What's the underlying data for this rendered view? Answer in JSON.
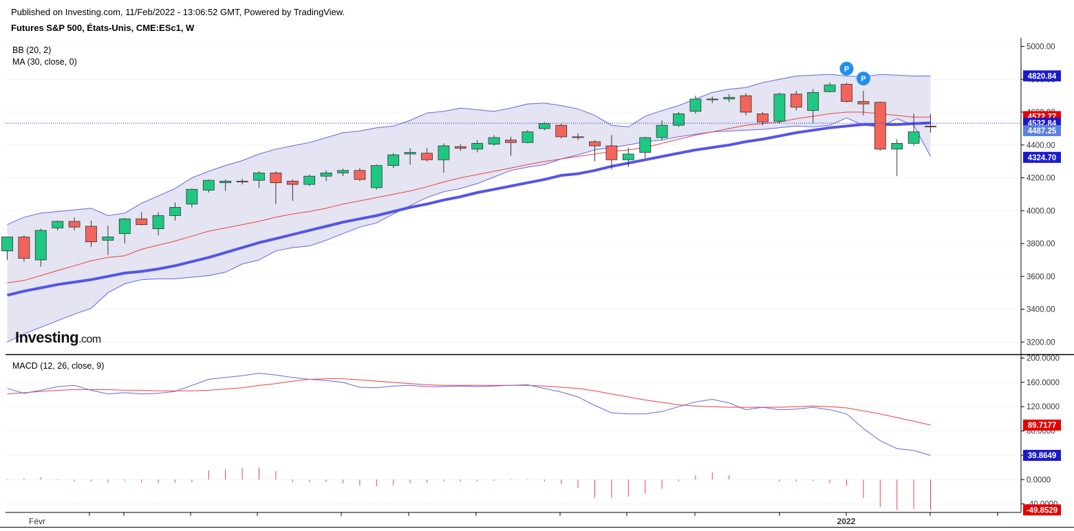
{
  "header": {
    "published": "Published on Investing.com, 11/Feb/2022 - 13:06:52 GMT, Powered by TradingView.",
    "symbol": "Futures S&P 500, États-Unis, CME:ESc1, W"
  },
  "indicators": {
    "bb": "BB (20, 2)",
    "ma": "MA (30, close, 0)",
    "macd": "MACD (12, 26, close, 9)"
  },
  "logo": {
    "main": "Investing",
    "suffix": ".com"
  },
  "colors": {
    "up": "#1ec882",
    "down": "#f4645a",
    "bb_fill": "#e4e4f2",
    "bb_line": "#6464e6",
    "ma30": "#5555e6",
    "bb_mid": "#ef3f3f",
    "macd_line": "#6464e6",
    "signal_line": "#ef3f3f",
    "badge_blue": "#1a1acd",
    "badge_red": "#e60000",
    "badge_light": "#5b7fde",
    "marker": "#1e90f0"
  },
  "chart_data": [
    {
      "type": "candlestick",
      "title": "Futures S&P 500, États-Unis, CME:ESc1, W",
      "x_labels": [
        "Févr",
        "2022"
      ],
      "y_ticks": [
        3200,
        3400,
        3600,
        3800,
        4000,
        4200,
        4400,
        4600,
        4800,
        5000
      ],
      "y_tick_labels": [
        "3200.00",
        "3400.00",
        "3600.00",
        "3800.00",
        "4000.00",
        "4200.00",
        "4400.00",
        "4600.00",
        "4800.00",
        "5000.00"
      ],
      "ylim": [
        3130,
        5040
      ],
      "candles": [
        {
          "o": 3755,
          "h": 3840,
          "l": 3700,
          "c": 3840
        },
        {
          "o": 3840,
          "h": 3850,
          "l": 3690,
          "c": 3710
        },
        {
          "o": 3700,
          "h": 3890,
          "l": 3660,
          "c": 3880
        },
        {
          "o": 3895,
          "h": 3940,
          "l": 3880,
          "c": 3935
        },
        {
          "o": 3935,
          "h": 3960,
          "l": 3880,
          "c": 3900
        },
        {
          "o": 3905,
          "h": 3940,
          "l": 3780,
          "c": 3810
        },
        {
          "o": 3820,
          "h": 3910,
          "l": 3730,
          "c": 3840
        },
        {
          "o": 3860,
          "h": 3955,
          "l": 3800,
          "c": 3950
        },
        {
          "o": 3950,
          "h": 3990,
          "l": 3910,
          "c": 3915
        },
        {
          "o": 3890,
          "h": 3990,
          "l": 3850,
          "c": 3970
        },
        {
          "o": 3970,
          "h": 4050,
          "l": 3940,
          "c": 4020
        },
        {
          "o": 4040,
          "h": 4135,
          "l": 4020,
          "c": 4130
        },
        {
          "o": 4125,
          "h": 4190,
          "l": 4110,
          "c": 4185
        },
        {
          "o": 4170,
          "h": 4190,
          "l": 4120,
          "c": 4180
        },
        {
          "o": 4180,
          "h": 4195,
          "l": 4160,
          "c": 4175
        },
        {
          "o": 4185,
          "h": 4240,
          "l": 4140,
          "c": 4230
        },
        {
          "o": 4230,
          "h": 4240,
          "l": 4040,
          "c": 4170
        },
        {
          "o": 4180,
          "h": 4190,
          "l": 4060,
          "c": 4160
        },
        {
          "o": 4160,
          "h": 4220,
          "l": 4150,
          "c": 4210
        },
        {
          "o": 4210,
          "h": 4245,
          "l": 4180,
          "c": 4230
        },
        {
          "o": 4230,
          "h": 4255,
          "l": 4210,
          "c": 4245
        },
        {
          "o": 4245,
          "h": 4260,
          "l": 4180,
          "c": 4190
        },
        {
          "o": 4140,
          "h": 4280,
          "l": 4130,
          "c": 4275
        },
        {
          "o": 4275,
          "h": 4350,
          "l": 4260,
          "c": 4340
        },
        {
          "o": 4345,
          "h": 4380,
          "l": 4280,
          "c": 4355
        },
        {
          "o": 4350,
          "h": 4380,
          "l": 4300,
          "c": 4310
        },
        {
          "o": 4310,
          "h": 4410,
          "l": 4230,
          "c": 4395
        },
        {
          "o": 4390,
          "h": 4405,
          "l": 4365,
          "c": 4380
        },
        {
          "o": 4375,
          "h": 4430,
          "l": 4355,
          "c": 4410
        },
        {
          "o": 4405,
          "h": 4460,
          "l": 4395,
          "c": 4445
        },
        {
          "o": 4430,
          "h": 4450,
          "l": 4335,
          "c": 4415
        },
        {
          "o": 4415,
          "h": 4490,
          "l": 4410,
          "c": 4480
        },
        {
          "o": 4500,
          "h": 4540,
          "l": 4490,
          "c": 4530
        },
        {
          "o": 4520,
          "h": 4530,
          "l": 4440,
          "c": 4450
        },
        {
          "o": 4450,
          "h": 4470,
          "l": 4430,
          "c": 4445
        },
        {
          "o": 4420,
          "h": 4430,
          "l": 4300,
          "c": 4395
        },
        {
          "o": 4395,
          "h": 4460,
          "l": 4250,
          "c": 4310
        },
        {
          "o": 4310,
          "h": 4385,
          "l": 4265,
          "c": 4345
        },
        {
          "o": 4355,
          "h": 4450,
          "l": 4320,
          "c": 4445
        },
        {
          "o": 4445,
          "h": 4550,
          "l": 4430,
          "c": 4520
        },
        {
          "o": 4520,
          "h": 4600,
          "l": 4510,
          "c": 4590
        },
        {
          "o": 4605,
          "h": 4700,
          "l": 4590,
          "c": 4680
        },
        {
          "o": 4675,
          "h": 4695,
          "l": 4655,
          "c": 4680
        },
        {
          "o": 4680,
          "h": 4710,
          "l": 4660,
          "c": 4690
        },
        {
          "o": 4700,
          "h": 4715,
          "l": 4580,
          "c": 4600
        },
        {
          "o": 4590,
          "h": 4600,
          "l": 4520,
          "c": 4540
        },
        {
          "o": 4545,
          "h": 4720,
          "l": 4530,
          "c": 4710
        },
        {
          "o": 4710,
          "h": 4730,
          "l": 4610,
          "c": 4630
        },
        {
          "o": 4610,
          "h": 4740,
          "l": 4530,
          "c": 4720
        },
        {
          "o": 4725,
          "h": 4780,
          "l": 4720,
          "c": 4765
        },
        {
          "o": 4770,
          "h": 4780,
          "l": 4660,
          "c": 4665
        },
        {
          "o": 4665,
          "h": 4730,
          "l": 4580,
          "c": 4650
        },
        {
          "o": 4660,
          "h": 4665,
          "l": 4365,
          "c": 4375
        },
        {
          "o": 4375,
          "h": 4435,
          "l": 4210,
          "c": 4410
        },
        {
          "o": 4410,
          "h": 4590,
          "l": 4395,
          "c": 4480
        },
        {
          "o": 4515,
          "h": 4590,
          "l": 4475,
          "c": 4510
        }
      ],
      "bb_upper": [
        3915,
        3960,
        3985,
        3995,
        4005,
        4015,
        3970,
        3985,
        4045,
        4090,
        4135,
        4200,
        4240,
        4275,
        4305,
        4345,
        4375,
        4395,
        4415,
        4445,
        4475,
        4485,
        4505,
        4515,
        4550,
        4595,
        4605,
        4625,
        4615,
        4605,
        4625,
        4650,
        4655,
        4640,
        4620,
        4580,
        4520,
        4510,
        4575,
        4610,
        4640,
        4680,
        4720,
        4740,
        4750,
        4780,
        4800,
        4820,
        4825,
        4830,
        4820,
        4815,
        4830,
        4825,
        4820,
        4820
      ],
      "bb_mid": [
        3560,
        3575,
        3605,
        3635,
        3665,
        3695,
        3715,
        3725,
        3765,
        3790,
        3815,
        3845,
        3875,
        3895,
        3915,
        3935,
        3960,
        3980,
        3995,
        4015,
        4040,
        4060,
        4080,
        4100,
        4120,
        4145,
        4175,
        4200,
        4220,
        4240,
        4260,
        4280,
        4300,
        4315,
        4330,
        4345,
        4360,
        4370,
        4385,
        4410,
        4435,
        4460,
        4480,
        4500,
        4520,
        4530,
        4540,
        4560,
        4575,
        4590,
        4600,
        4600,
        4590,
        4580,
        4570,
        4570
      ],
      "bb_lower": [
        3200,
        3250,
        3290,
        3330,
        3370,
        3405,
        3500,
        3555,
        3580,
        3585,
        3585,
        3595,
        3605,
        3625,
        3675,
        3700,
        3755,
        3775,
        3785,
        3820,
        3860,
        3900,
        3925,
        3980,
        4030,
        4080,
        4115,
        4135,
        4165,
        4205,
        4245,
        4265,
        4280,
        4315,
        4340,
        4370,
        4385,
        4400,
        4420,
        4430,
        4450,
        4465,
        4480,
        4485,
        4490,
        4495,
        4505,
        4515,
        4510,
        4520,
        4565,
        4520,
        4510,
        4560,
        4520,
        4330
      ],
      "ma30": [
        3485,
        3510,
        3530,
        3550,
        3565,
        3580,
        3600,
        3620,
        3630,
        3645,
        3665,
        3690,
        3715,
        3745,
        3775,
        3805,
        3830,
        3855,
        3880,
        3905,
        3930,
        3950,
        3970,
        3995,
        4020,
        4040,
        4065,
        4085,
        4110,
        4130,
        4150,
        4170,
        4190,
        4215,
        4225,
        4245,
        4270,
        4290,
        4310,
        4330,
        4350,
        4370,
        4385,
        4400,
        4420,
        4435,
        4455,
        4475,
        4490,
        4505,
        4515,
        4525,
        4525,
        4525,
        4530,
        4535
      ],
      "price_line": 4532.84,
      "price_badges": [
        {
          "label": "4820.84",
          "value": 4820.84,
          "color": "#1a1acd"
        },
        {
          "label": "4572.77",
          "value": 4572.77,
          "color": "#e60000"
        },
        {
          "label": "4532.84",
          "value": 4532.84,
          "color": "#1a1acd"
        },
        {
          "label": "4487.25",
          "value": 4487.25,
          "color": "#5b7fde"
        },
        {
          "label": "4324.70",
          "value": 4324.7,
          "color": "#1a1acd"
        }
      ],
      "markers": [
        {
          "label": "P",
          "index": 50,
          "value": 4865
        },
        {
          "label": "P",
          "index": 51,
          "value": 4805
        }
      ]
    },
    {
      "type": "macd",
      "title": "MACD (12, 26, close, 9)",
      "y_ticks": [
        -40,
        0,
        40,
        80,
        120,
        160,
        200
      ],
      "y_tick_labels": [
        "-40.0000",
        "0.0000",
        "40.0000",
        "80.0000",
        "120.0000",
        "160.0000",
        "200.0000"
      ],
      "ylim": [
        -54,
        204
      ],
      "macd": [
        150,
        142,
        147,
        153,
        155,
        147,
        141,
        143,
        141,
        142,
        145,
        155,
        165,
        168,
        171,
        175,
        172,
        168,
        165,
        163,
        160,
        152,
        151,
        154,
        155,
        153,
        153,
        154,
        153,
        154,
        155,
        156,
        150,
        144,
        136,
        122,
        110,
        108,
        108,
        112,
        120,
        128,
        132,
        126,
        115,
        119,
        115,
        116,
        119,
        115,
        108,
        84,
        64,
        51,
        48,
        39.86
      ],
      "signal": [
        141,
        143,
        145,
        147,
        148,
        148,
        148,
        147,
        147,
        146,
        146,
        146,
        147,
        149,
        151,
        155,
        158,
        162,
        165,
        166,
        166,
        164,
        162,
        160,
        158,
        156,
        155,
        155,
        155,
        155,
        155,
        155,
        154,
        152,
        150,
        146,
        141,
        136,
        131,
        127,
        123,
        121,
        120,
        119,
        119,
        119,
        119,
        120,
        121,
        120,
        118,
        113,
        108,
        102,
        96,
        89.72
      ],
      "histogram": [
        -1,
        2,
        4,
        -1,
        -3,
        -3,
        -5,
        -2,
        -5,
        -6,
        -5,
        -4,
        15,
        17,
        19,
        20,
        14,
        -4,
        -4,
        -4,
        -6,
        -10,
        -11,
        -9,
        -6,
        -5,
        -3,
        -3,
        -3,
        -2,
        1,
        1,
        -3,
        -7,
        -14,
        -30,
        -30,
        -28,
        -23,
        -15,
        -3,
        7,
        12,
        7,
        0,
        0,
        -3,
        -3,
        -2,
        -6,
        -10,
        -30,
        -45,
        -50,
        -48,
        -49.85
      ],
      "value_badges": [
        {
          "label": "89.7177",
          "value": 89.7177,
          "color": "#e60000"
        },
        {
          "label": "39.8649",
          "value": 39.8649,
          "color": "#1a1acd"
        },
        {
          "label": "-49.8529",
          "value": -49.8529,
          "color": "#e60000"
        }
      ]
    }
  ]
}
